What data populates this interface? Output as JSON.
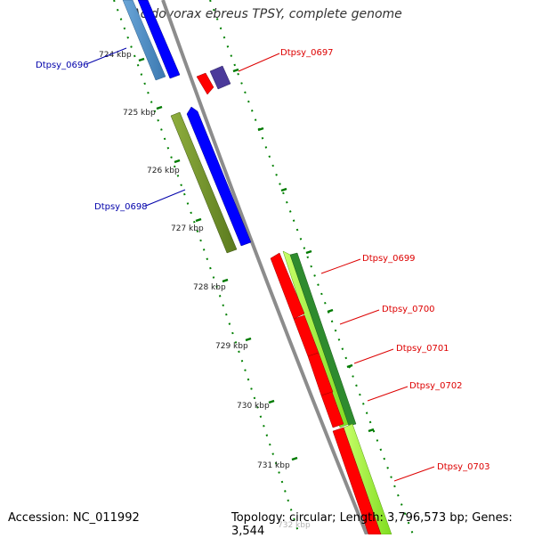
{
  "title": "Acidovorax ebreus TPSY, complete genome",
  "footer": {
    "accession": "Accession: NC_011992",
    "info": "Topology: circular; Length: 3,796,573 bp; Genes: 3,544"
  },
  "colors": {
    "backbone": "#8c8c8c",
    "forward_cds": "#0000ff",
    "reverse_cds": "#ff0000",
    "tick": "#008000",
    "label_forward": "#0000aa",
    "label_reverse": "#dd0000"
  },
  "ticks": [
    {
      "label": "724 kbp"
    },
    {
      "label": "725 kbp"
    },
    {
      "label": "726 kbp"
    },
    {
      "label": "727 kbp"
    },
    {
      "label": "728 kbp"
    },
    {
      "label": "729 kbp"
    },
    {
      "label": "730 kbp"
    },
    {
      "label": "731 kbp"
    },
    {
      "label": "732 kbp"
    }
  ],
  "gene_labels": [
    {
      "id": "Dtpsy_0696",
      "strand": "forward"
    },
    {
      "id": "Dtpsy_0697",
      "strand": "reverse"
    },
    {
      "id": "Dtpsy_0698",
      "strand": "forward"
    },
    {
      "id": "Dtpsy_0699",
      "strand": "reverse"
    },
    {
      "id": "Dtpsy_0700",
      "strand": "reverse"
    },
    {
      "id": "Dtpsy_0701",
      "strand": "reverse"
    },
    {
      "id": "Dtpsy_0702",
      "strand": "reverse"
    },
    {
      "id": "Dtpsy_0703",
      "strand": "reverse"
    }
  ]
}
